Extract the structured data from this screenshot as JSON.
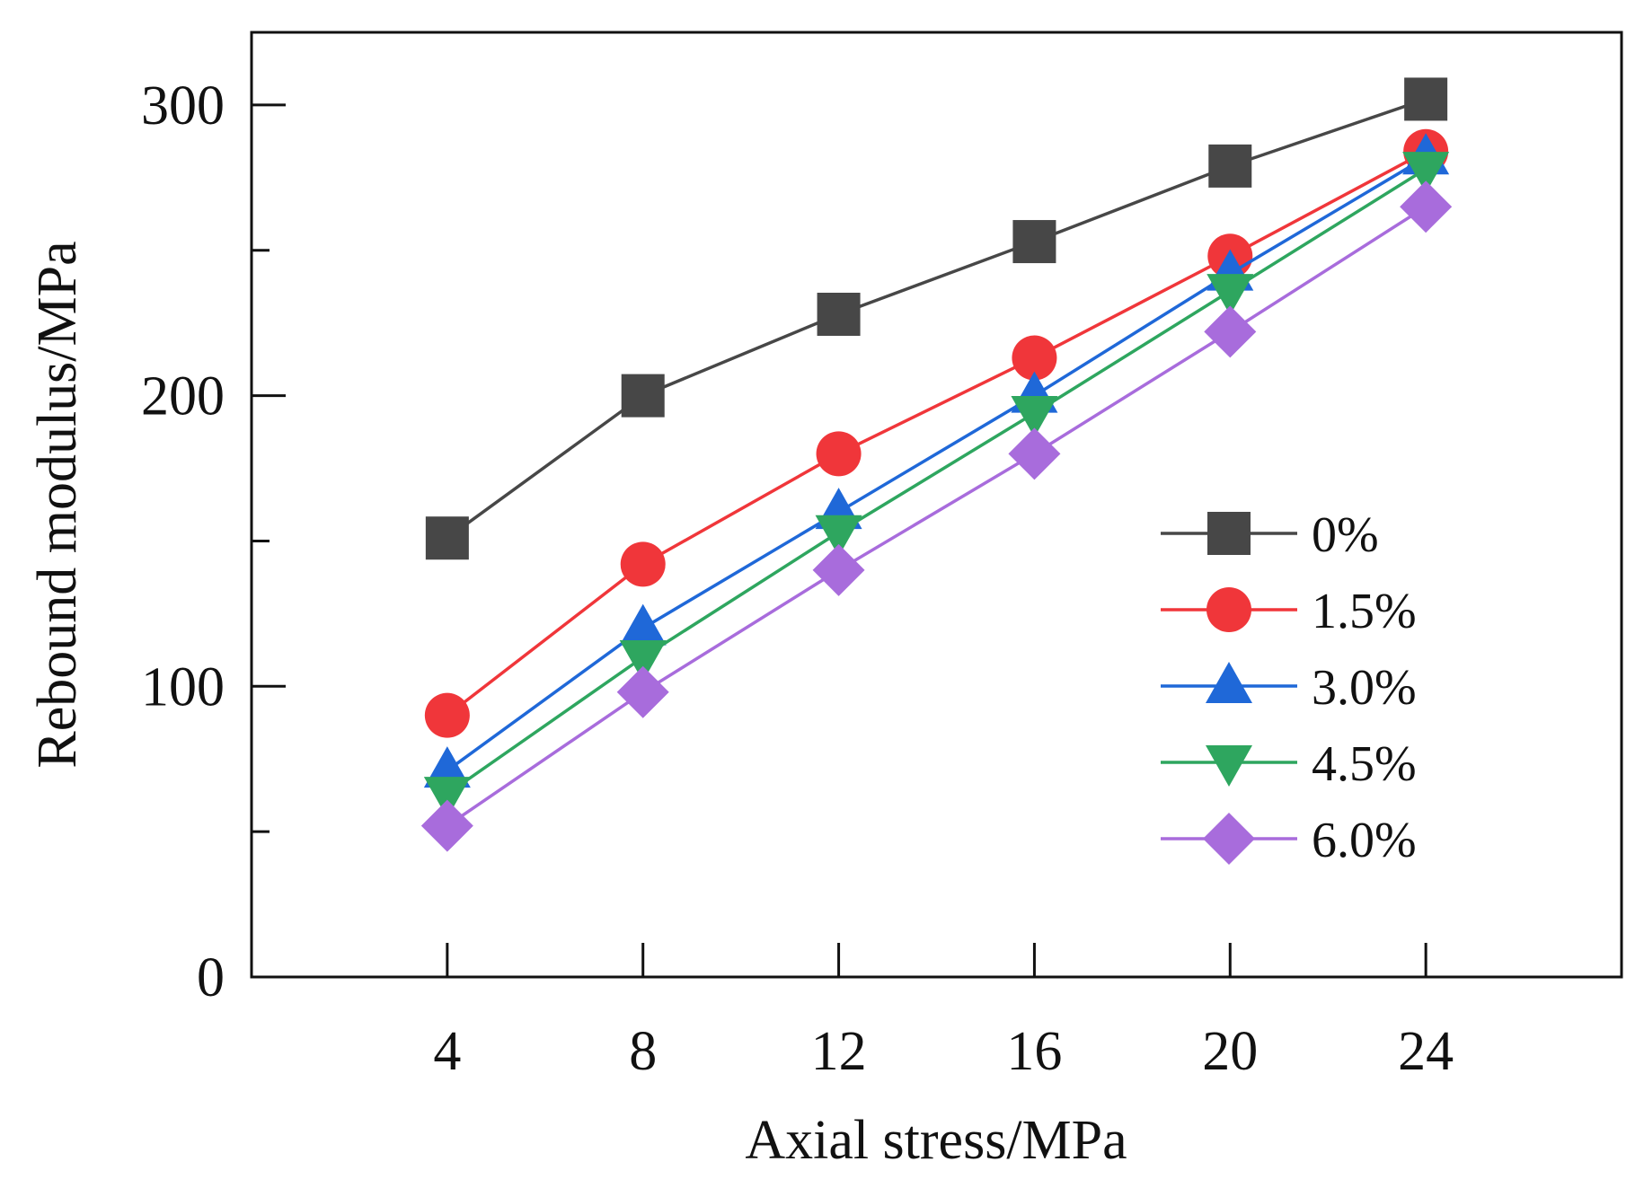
{
  "chart_data": {
    "type": "line",
    "xlabel": "Axial stress/MPa",
    "ylabel": "Rebound modulus/MPa",
    "x": [
      4,
      8,
      12,
      16,
      20,
      24
    ],
    "xlim": [
      0,
      28
    ],
    "ylim": [
      0,
      325
    ],
    "xticks": [
      4,
      8,
      12,
      16,
      20,
      24
    ],
    "yticks_major": [
      0,
      100,
      200,
      300
    ],
    "yticks_minor": [
      50,
      150,
      250
    ],
    "grid": false,
    "legend_position": "center-right",
    "series": [
      {
        "name": "0%",
        "values": [
          151,
          200,
          228,
          253,
          279,
          302
        ],
        "color": "#474747",
        "marker": "square"
      },
      {
        "name": "1.5%",
        "values": [
          90,
          142,
          180,
          213,
          248,
          284
        ],
        "color": "#f0363a",
        "marker": "circle"
      },
      {
        "name": "3.0%",
        "values": [
          71,
          120,
          160,
          200,
          242,
          282
        ],
        "color": "#1f68d8",
        "marker": "triangle-up"
      },
      {
        "name": "4.5%",
        "values": [
          63,
          110,
          153,
          194,
          236,
          278
        ],
        "color": "#2ea65f",
        "marker": "triangle-down"
      },
      {
        "name": "6.0%",
        "values": [
          52,
          98,
          140,
          180,
          222,
          265
        ],
        "color": "#a86cdc",
        "marker": "diamond"
      }
    ]
  }
}
